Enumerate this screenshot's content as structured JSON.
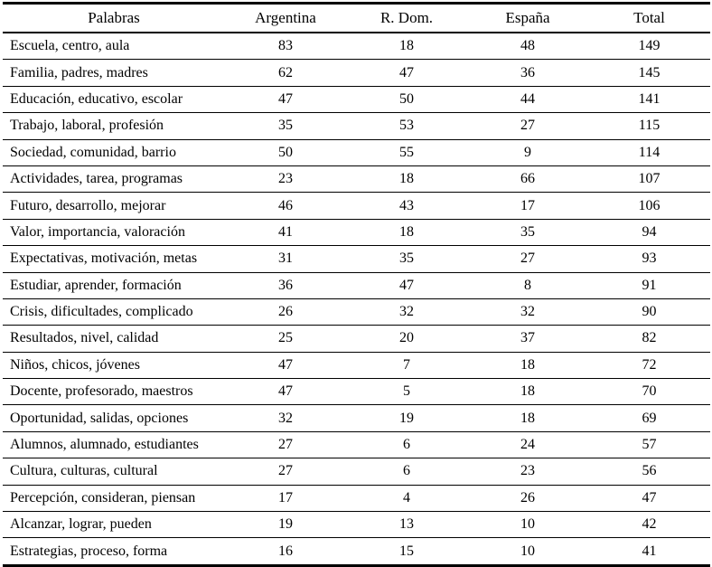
{
  "table": {
    "columns": [
      "Palabras",
      "Argentina",
      "R. Dom.",
      "España",
      "Total"
    ],
    "rows": [
      {
        "words": "Escuela, centro, aula",
        "values": [
          "83",
          "18",
          "48",
          "149"
        ]
      },
      {
        "words": "Familia, padres, madres",
        "values": [
          "62",
          "47",
          "36",
          "145"
        ]
      },
      {
        "words": "Educación, educativo, escolar",
        "values": [
          "47",
          "50",
          "44",
          "141"
        ]
      },
      {
        "words": "Trabajo, laboral, profesión",
        "values": [
          "35",
          "53",
          "27",
          "115"
        ]
      },
      {
        "words": "Sociedad, comunidad, barrio",
        "values": [
          "50",
          "55",
          "9",
          "114"
        ]
      },
      {
        "words": "Actividades, tarea, programas",
        "values": [
          "23",
          "18",
          "66",
          "107"
        ]
      },
      {
        "words": "Futuro, desarrollo, mejorar",
        "values": [
          "46",
          "43",
          "17",
          "106"
        ]
      },
      {
        "words": "Valor, importancia, valoración",
        "values": [
          "41",
          "18",
          "35",
          "94"
        ]
      },
      {
        "words": "Expectativas, motivación, metas",
        "values": [
          "31",
          "35",
          "27",
          "93"
        ]
      },
      {
        "words": "Estudiar, aprender, formación",
        "values": [
          "36",
          "47",
          "8",
          "91"
        ]
      },
      {
        "words": "Crisis, dificultades, complicado",
        "values": [
          "26",
          "32",
          "32",
          "90"
        ]
      },
      {
        "words": "Resultados, nivel, calidad",
        "values": [
          "25",
          "20",
          "37",
          "82"
        ]
      },
      {
        "words": "Niños, chicos, jóvenes",
        "values": [
          "47",
          "7",
          "18",
          "72"
        ]
      },
      {
        "words": "Docente, profesorado, maestros",
        "values": [
          "47",
          "5",
          "18",
          "70"
        ]
      },
      {
        "words": "Oportunidad, salidas, opciones",
        "values": [
          "32",
          "19",
          "18",
          "69"
        ]
      },
      {
        "words": "Alumnos, alumnado, estudiantes",
        "values": [
          "27",
          "6",
          "24",
          "57"
        ]
      },
      {
        "words": "Cultura, culturas, cultural",
        "values": [
          "27",
          "6",
          "23",
          "56"
        ]
      },
      {
        "words": "Percepción, consideran, piensan",
        "values": [
          "17",
          "4",
          "26",
          "47"
        ]
      },
      {
        "words": "Alcanzar, lograr, pueden",
        "values": [
          "19",
          "13",
          "10",
          "42"
        ]
      },
      {
        "words": "Estrategias, proceso, forma",
        "values": [
          "16",
          "15",
          "10",
          "41"
        ]
      }
    ]
  }
}
